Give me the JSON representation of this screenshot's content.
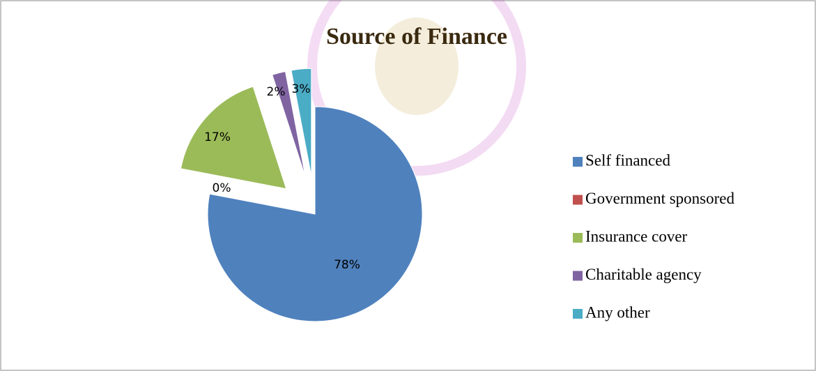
{
  "chart_data": {
    "type": "pie",
    "title": "Source of Finance",
    "categories": [
      "Self financed",
      "Government sponsored",
      "Insurance cover",
      "Charitable agency",
      "Any other"
    ],
    "values": [
      78,
      0,
      17,
      2,
      3
    ],
    "value_labels": [
      "78%",
      "0%",
      "17%",
      "2%",
      "3%"
    ],
    "colors": [
      "#4f81bd",
      "#c0504d",
      "#9bbb59",
      "#8064a2",
      "#4bacc6"
    ],
    "legend": "right"
  }
}
